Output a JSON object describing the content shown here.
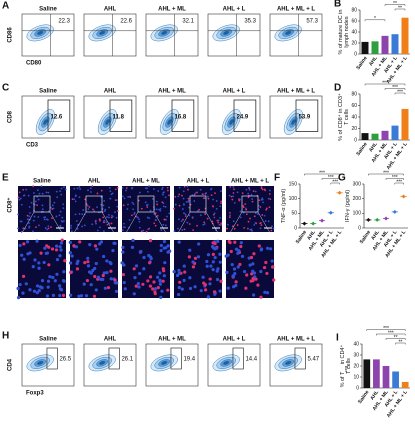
{
  "flow_panels": [
    {
      "label": "A",
      "y_axis": "CD86",
      "x_axis": "CD80",
      "groups": [
        "Saline",
        "AHL",
        "AHL + ML",
        "AHL + L",
        "AHL + ML + L"
      ],
      "values": [
        22.3,
        22.6,
        32.1,
        35.3,
        57.3
      ]
    },
    {
      "label": "C",
      "y_axis": "CD8",
      "x_axis": "CD3",
      "groups": [
        "Saline",
        "AHL",
        "AHL + ML",
        "AHL + L",
        "AHL + ML + L"
      ],
      "values": [
        12.6,
        11.8,
        16.8,
        24.9,
        53.9
      ]
    },
    {
      "label": "H",
      "y_axis": "CD4",
      "x_axis": "Foxp3",
      "groups": [
        "Saline",
        "AHL",
        "AHL + ML",
        "AHL + L",
        "AHL + ML + L"
      ],
      "values": [
        26.5,
        26.1,
        19.4,
        14.4,
        5.47
      ]
    }
  ],
  "image_panel": {
    "label": "E",
    "row_label": "CD8⁺",
    "groups": [
      "Saline",
      "AHL",
      "AHL + ML",
      "AHL + L",
      "AHL + ML + L"
    ]
  },
  "chart_data": [
    {
      "label": "B",
      "type": "bar",
      "ylabel": [
        "% of mature DC in",
        "lymph nodes"
      ],
      "categories": [
        "Saline",
        "AHL",
        "AHL + ML",
        "AHL + L",
        "AHL + ML + L"
      ],
      "values": [
        22,
        23,
        33,
        36,
        66
      ],
      "colors": [
        "#111111",
        "#2e9e3e",
        "#8e44ad",
        "#3a7bd5",
        "#f07f1a"
      ],
      "ylim": [
        0,
        80
      ],
      "yticks": [
        0,
        20,
        40,
        60,
        80
      ],
      "annotations": [
        "*",
        "**",
        "**"
      ]
    },
    {
      "label": "D",
      "type": "bar",
      "ylabel": [
        "% of CD8⁺ in CD3⁺",
        "T cells"
      ],
      "categories": [
        "Saline",
        "AHL",
        "AHL + ML",
        "AHL + L",
        "AHL + ML + L"
      ],
      "values": [
        12,
        11,
        16,
        25,
        54
      ],
      "colors": [
        "#111111",
        "#2e9e3e",
        "#8e44ad",
        "#3a7bd5",
        "#f07f1a"
      ],
      "ylim": [
        0,
        80
      ],
      "yticks": [
        0,
        20,
        40,
        60,
        80
      ],
      "annotations": [
        "***",
        "***",
        "***"
      ]
    },
    {
      "label": "F",
      "type": "dot",
      "ylabel": [
        "TNF-α (pg/ml)"
      ],
      "categories": [
        "Saline",
        "AHL",
        "AHL + ML",
        "AHL + L",
        "AHL + ML + L"
      ],
      "values": [
        15,
        15,
        25,
        52,
        120
      ],
      "colors": [
        "#111111",
        "#2e9e3e",
        "#8e44ad",
        "#3a7bd5",
        "#f07f1a"
      ],
      "ylim": [
        0,
        150
      ],
      "yticks": [
        0,
        50,
        100,
        150
      ],
      "annotations": [
        "***",
        "***",
        "***"
      ]
    },
    {
      "label": "G",
      "type": "dot",
      "ylabel": [
        "IFN-γ (pg/ml)"
      ],
      "categories": [
        "Saline",
        "AHL",
        "AHL + ML",
        "AHL + L",
        "AHL + ML + L"
      ],
      "values": [
        55,
        55,
        65,
        110,
        215
      ],
      "colors": [
        "#111111",
        "#2e9e3e",
        "#8e44ad",
        "#3a7bd5",
        "#f07f1a"
      ],
      "ylim": [
        0,
        300
      ],
      "yticks": [
        0,
        100,
        200,
        300
      ],
      "annotations": [
        "***",
        "***",
        "***"
      ]
    },
    {
      "label": "I",
      "type": "bar",
      "ylabel": [
        "% of T",
        "reg",
        " in CD4⁺",
        "T cells"
      ],
      "categories": [
        "Saline",
        "AHL",
        "AHL + ML",
        "AHL + L",
        "AHL + ML + L"
      ],
      "values": [
        26,
        26,
        20,
        15,
        5.5
      ],
      "colors": [
        "#111111",
        "#8e44ad",
        "#8e44ad",
        "#3a7bd5",
        "#f07f1a"
      ],
      "ylim": [
        0,
        40
      ],
      "yticks": [
        0,
        10,
        20,
        30,
        40
      ],
      "annotations": [
        "***",
        "***",
        "**",
        "**"
      ]
    }
  ]
}
